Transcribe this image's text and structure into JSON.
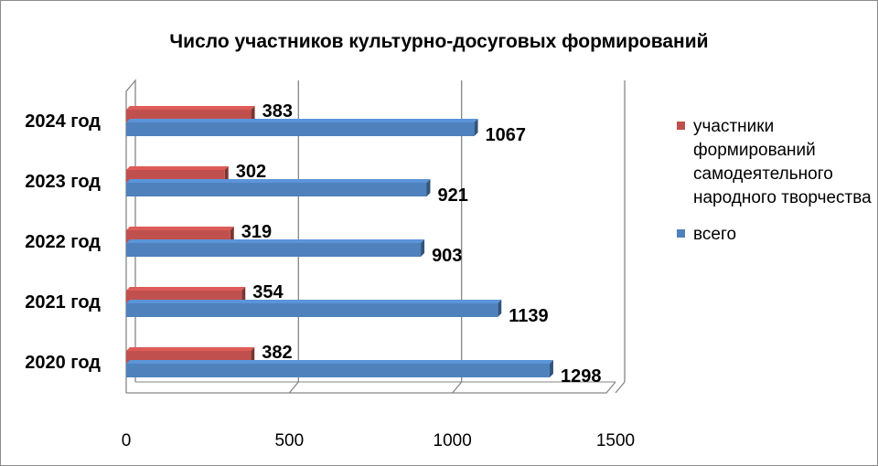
{
  "chart_data": {
    "type": "bar",
    "orientation": "horizontal",
    "title": "Число участников культурно-досуговых  формирований",
    "categories": [
      "2020 год",
      "2021 год",
      "2022 год",
      "2023 год",
      "2024 год"
    ],
    "series": [
      {
        "name": "всего",
        "color": "#4f81bd",
        "values": [
          1298,
          1139,
          903,
          921,
          1067
        ]
      },
      {
        "name": "участники формирований самодеятельного народного творчества",
        "color": "#c0504d",
        "values": [
          382,
          354,
          319,
          302,
          383
        ]
      }
    ],
    "xlim": [
      0,
      1500
    ],
    "xticks": [
      "0",
      "500",
      "1000",
      "1500"
    ],
    "grid": true,
    "legend_position": "right",
    "data_labels": true
  }
}
